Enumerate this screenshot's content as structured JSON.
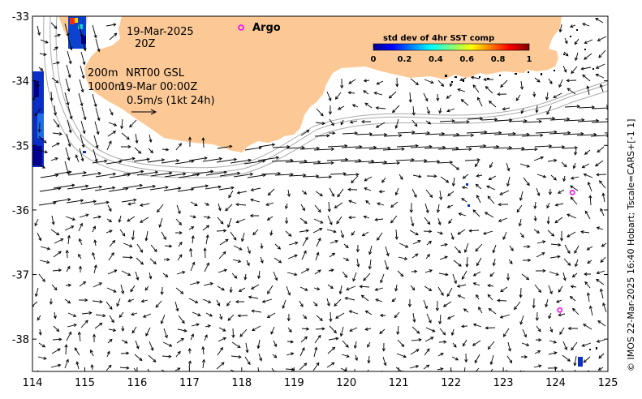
{
  "map": {
    "lon_range": [
      114,
      125
    ],
    "lat_range": [
      -38.5,
      -33
    ],
    "x_ticks": [
      "114",
      "115",
      "116",
      "117",
      "118",
      "119",
      "120",
      "121",
      "122",
      "123",
      "124",
      "125"
    ],
    "y_ticks": [
      "-33",
      "-34",
      "-35",
      "-36",
      "-37",
      "-38"
    ],
    "land_color": "#fcc996",
    "vector_color": "#000000",
    "isobath_color": "#aaaaaa"
  },
  "annotations": {
    "date": "19-Mar-2025",
    "time": "20Z",
    "isobath_200": "200m",
    "isobath_1000": "1000m",
    "model": "NRT00 GSL",
    "model_time": "19-Mar 00:00Z",
    "scale": "0.5m/s (1kt 24h)"
  },
  "legend": {
    "argo_label": "Argo",
    "argo_color": "#ff00ff"
  },
  "colorbar": {
    "title": "std dev of 4hr SST comp",
    "ticks": [
      "0",
      "0.2",
      "0.4",
      "0.6",
      "0.8",
      "1"
    ],
    "colormap": "jet"
  },
  "credit": "© IMOS 22-Mar-2025 16:40 Hobart; Tscale=CARS+[-1 1]",
  "argo_floats": [
    {
      "lon": 124.32,
      "lat": -35.73
    },
    {
      "lon": 124.08,
      "lat": -37.55
    }
  ]
}
